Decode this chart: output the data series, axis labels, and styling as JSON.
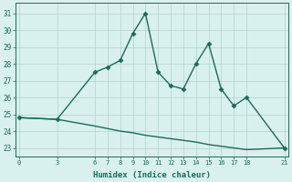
{
  "x": [
    0,
    3,
    6,
    7,
    8,
    9,
    10,
    11,
    12,
    13,
    14,
    15,
    16,
    17,
    18,
    21
  ],
  "y_upper": [
    24.8,
    24.7,
    27.5,
    27.8,
    28.2,
    29.8,
    31.0,
    27.5,
    26.7,
    26.5,
    28.0,
    29.2,
    26.5,
    25.5,
    26.0,
    23.0
  ],
  "y_lower": [
    24.8,
    24.7,
    24.3,
    24.15,
    24.0,
    23.9,
    23.75,
    23.65,
    23.55,
    23.45,
    23.35,
    23.2,
    23.1,
    23.0,
    22.9,
    23.0
  ],
  "xticks": [
    0,
    3,
    6,
    7,
    8,
    9,
    10,
    11,
    12,
    13,
    14,
    15,
    16,
    17,
    18,
    21
  ],
  "yticks": [
    23,
    24,
    25,
    26,
    27,
    28,
    29,
    30,
    31
  ],
  "xlabel": "Humidex (Indice chaleur)",
  "xlim": [
    -0.3,
    21.3
  ],
  "ylim": [
    22.5,
    31.6
  ],
  "line_color": "#1a6b5a",
  "bg_color": "#d8f0ee",
  "grid_color": "#b0d4d0",
  "marker": "D",
  "markersize": 2.5,
  "linewidth": 1.0
}
